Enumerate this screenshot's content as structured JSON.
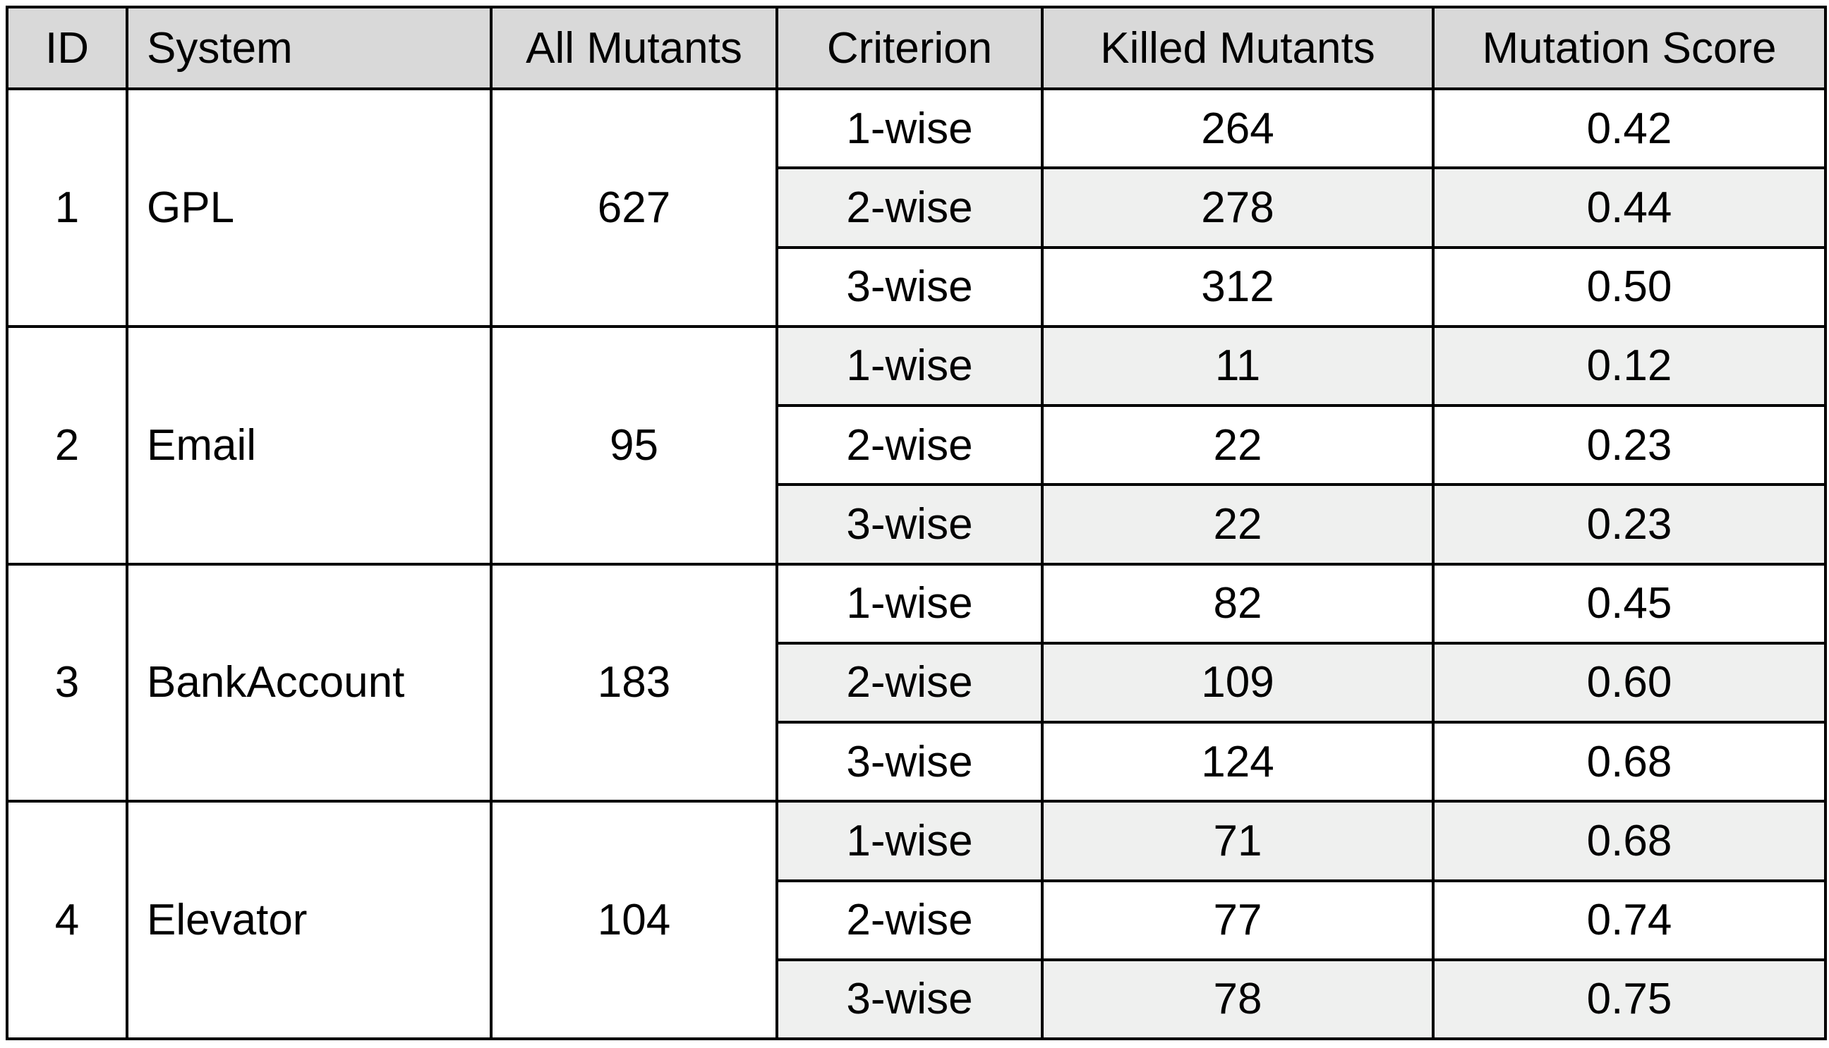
{
  "table": {
    "headers": [
      "ID",
      "System",
      "All Mutants",
      "Criterion",
      "Killed Mutants",
      "Mutation Score"
    ],
    "systems": [
      {
        "id": "1",
        "system": "GPL",
        "all_mutants": "627",
        "rows": [
          {
            "criterion": "1-wise",
            "killed": "264",
            "score": "0.42"
          },
          {
            "criterion": "2-wise",
            "killed": "278",
            "score": "0.44"
          },
          {
            "criterion": "3-wise",
            "killed": "312",
            "score": "0.50"
          }
        ]
      },
      {
        "id": "2",
        "system": "Email",
        "all_mutants": "95",
        "rows": [
          {
            "criterion": "1-wise",
            "killed": "11",
            "score": "0.12"
          },
          {
            "criterion": "2-wise",
            "killed": "22",
            "score": "0.23"
          },
          {
            "criterion": "3-wise",
            "killed": "22",
            "score": "0.23"
          }
        ]
      },
      {
        "id": "3",
        "system": "BankAccount",
        "all_mutants": "183",
        "rows": [
          {
            "criterion": "1-wise",
            "killed": "82",
            "score": "0.45"
          },
          {
            "criterion": "2-wise",
            "killed": "109",
            "score": "0.60"
          },
          {
            "criterion": "3-wise",
            "killed": "124",
            "score": "0.68"
          }
        ]
      },
      {
        "id": "4",
        "system": "Elevator",
        "all_mutants": "104",
        "rows": [
          {
            "criterion": "1-wise",
            "killed": "71",
            "score": "0.68"
          },
          {
            "criterion": "2-wise",
            "killed": "77",
            "score": "0.74"
          },
          {
            "criterion": "3-wise",
            "killed": "78",
            "score": "0.75"
          }
        ]
      }
    ]
  },
  "colors": {
    "header_bg": "#d9d9d9",
    "alt_row_bg": "#eff0ef",
    "border": "#000000"
  }
}
